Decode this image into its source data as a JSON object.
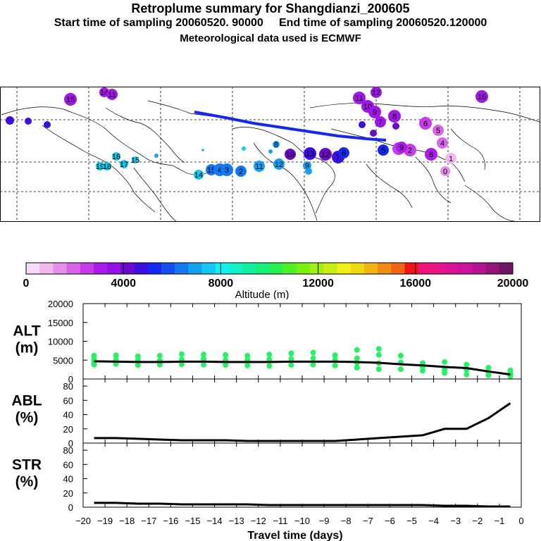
{
  "header": {
    "title": "Retroplume summary for Shangdianzi_200605",
    "sampling": "Start time of sampling 20060520. 90000     End time of sampling 20060520.120000",
    "met": "Meteorological data used is ECMWF"
  },
  "colorbar": {
    "label": "Altitude (m)",
    "ticks": [
      "0",
      "4000",
      "8000",
      "12000",
      "16000",
      "20000"
    ],
    "colors": [
      "#f7d8f7",
      "#efb8ef",
      "#e490ea",
      "#d865e6",
      "#c63ce6",
      "#aa1ce8",
      "#9414e8",
      "#6c0acc",
      "#3c0ee0",
      "#1428f0",
      "#1450f0",
      "#1478f0",
      "#14a0f0",
      "#14c8f0",
      "#14f0f0",
      "#14f0c8",
      "#14f0a0",
      "#14f078",
      "#28f050",
      "#50f028",
      "#78f014",
      "#a0f014",
      "#c8f014",
      "#f0f014",
      "#f0d814",
      "#f0b414",
      "#f08c14",
      "#f06414",
      "#f01414",
      "#f0147a",
      "#e8148c",
      "#d81494",
      "#c8149c",
      "#b41494",
      "#941478",
      "#701466"
    ]
  },
  "map_labels": {
    "plume": [
      {
        "t": "15",
        "c": "#a016e8"
      },
      {
        "t": "14",
        "c": "#a016e8"
      },
      {
        "t": "11",
        "c": "#a016e8"
      },
      {
        "t": "16",
        "c": "#a016e8"
      },
      {
        "t": "12",
        "c": "#a016e8"
      },
      {
        "t": "11",
        "c": "#a016e8"
      },
      {
        "t": "10",
        "c": "#a016e8"
      },
      {
        "t": "9",
        "c": "#a016e8"
      },
      {
        "t": "8",
        "c": "#a016e8"
      },
      {
        "t": "7",
        "c": "#a016e8"
      },
      {
        "t": "6",
        "c": "#c63ce6"
      },
      {
        "t": "5",
        "c": "#d865e6"
      },
      {
        "t": "4",
        "c": "#d865e6"
      },
      {
        "t": "3",
        "c": "#c63ce6"
      },
      {
        "t": "2",
        "c": "#c63ce6"
      },
      {
        "t": "1",
        "c": "#efb8ef"
      },
      {
        "t": "0",
        "c": "#e490ea"
      },
      {
        "t": "16",
        "c": "#14c8f0"
      },
      {
        "t": "17",
        "c": "#14c8f0"
      },
      {
        "t": "19",
        "c": "#14c8f0"
      },
      {
        "t": "18",
        "c": "#14c8f0"
      },
      {
        "t": "15",
        "c": "#14c8f0"
      },
      {
        "t": "14",
        "c": "#14c8f0"
      },
      {
        "t": "15",
        "c": "#1478f0"
      },
      {
        "t": "4",
        "c": "#1478f0"
      },
      {
        "t": "3",
        "c": "#1478f0"
      },
      {
        "t": "2",
        "c": "#1478f0"
      },
      {
        "t": "11",
        "c": "#14a0f0"
      },
      {
        "t": "12",
        "c": "#14a0f0"
      },
      {
        "t": "9",
        "c": "#14a0f0"
      },
      {
        "t": "8",
        "c": "#14a0f0"
      },
      {
        "t": "13",
        "c": "#3c0ee0"
      },
      {
        "t": "12",
        "c": "#6c0acc"
      },
      {
        "t": "10",
        "c": "#6c0acc"
      },
      {
        "t": "7",
        "c": "#3c0ee0"
      },
      {
        "t": "6",
        "c": "#1428f0"
      },
      {
        "t": "5",
        "c": "#1428f0"
      },
      {
        "t": "9",
        "c": "#aa1ce8"
      },
      {
        "t": "8",
        "c": "#aa1ce8"
      },
      {
        "t": "6",
        "c": "#aa1ce8"
      }
    ]
  },
  "chart_data": [
    {
      "type": "scatter",
      "panel": "ALT",
      "title": "Retroplume summary for Shangdianzi_200605",
      "ylabel": "ALT\n(m)",
      "ylabel_lines": [
        "ALT",
        "(m)"
      ],
      "ylim": [
        0,
        20000
      ],
      "yticks": [
        "0",
        "5000",
        "10000",
        "15000",
        "20000"
      ],
      "x": [
        -19.5,
        -18.5,
        -17.5,
        -16.5,
        -15.5,
        -14.5,
        -13.5,
        -12.5,
        -11.5,
        -10.5,
        -9.5,
        -8.5,
        -7.5,
        -6.5,
        -5.5,
        -4.5,
        -3.5,
        -2.5,
        -1.5,
        -0.5
      ],
      "series": [
        {
          "name": "mean altitude",
          "values": [
            4700,
            4600,
            4500,
            4500,
            4600,
            4600,
            4500,
            4500,
            4500,
            4600,
            4600,
            4600,
            4500,
            4300,
            3900,
            3600,
            3200,
            2900,
            2000,
            1200
          ]
        },
        {
          "name": "plume points",
          "points": [
            [
              -19.5,
              6200
            ],
            [
              -19.5,
              5200
            ],
            [
              -19.5,
              4400
            ],
            [
              -19.5,
              3800
            ],
            [
              -18.5,
              6300
            ],
            [
              -18.5,
              5100
            ],
            [
              -18.5,
              4000
            ],
            [
              -17.5,
              6000
            ],
            [
              -17.5,
              5000
            ],
            [
              -17.5,
              3700
            ],
            [
              -16.5,
              6200
            ],
            [
              -16.5,
              4900
            ],
            [
              -16.5,
              3800
            ],
            [
              -15.5,
              6600
            ],
            [
              -15.5,
              5200
            ],
            [
              -15.5,
              3900
            ],
            [
              -14.5,
              6500
            ],
            [
              -14.5,
              5300
            ],
            [
              -14.5,
              3800
            ],
            [
              -13.5,
              6400
            ],
            [
              -13.5,
              5000
            ],
            [
              -13.5,
              3700
            ],
            [
              -12.5,
              6200
            ],
            [
              -12.5,
              5100
            ],
            [
              -12.5,
              3600
            ],
            [
              -11.5,
              6500
            ],
            [
              -11.5,
              5200
            ],
            [
              -11.5,
              3500
            ],
            [
              -10.5,
              6800
            ],
            [
              -10.5,
              5300
            ],
            [
              -10.5,
              3700
            ],
            [
              -9.5,
              7000
            ],
            [
              -9.5,
              5500
            ],
            [
              -9.5,
              3800
            ],
            [
              -8.5,
              6300
            ],
            [
              -8.5,
              5000
            ],
            [
              -8.5,
              3600
            ],
            [
              -7.5,
              7700
            ],
            [
              -7.5,
              5500
            ],
            [
              -7.5,
              4300
            ],
            [
              -7.5,
              3000
            ],
            [
              -6.5,
              8000
            ],
            [
              -6.5,
              6400
            ],
            [
              -6.5,
              4200
            ],
            [
              -6.5,
              2600
            ],
            [
              -5.5,
              6200
            ],
            [
              -5.5,
              4400
            ],
            [
              -5.5,
              2600
            ],
            [
              -4.5,
              4200
            ],
            [
              -4.5,
              3200
            ],
            [
              -4.5,
              2200
            ],
            [
              -3.5,
              4500
            ],
            [
              -3.5,
              2500
            ],
            [
              -3.5,
              1600
            ],
            [
              -2.5,
              3800
            ],
            [
              -2.5,
              2500
            ],
            [
              -2.5,
              1200
            ],
            [
              -1.5,
              3000
            ],
            [
              -1.5,
              1800
            ],
            [
              -1.5,
              1000
            ],
            [
              -0.5,
              2300
            ],
            [
              -0.5,
              1400
            ],
            [
              -0.5,
              700
            ]
          ]
        }
      ]
    },
    {
      "type": "line",
      "panel": "ABL",
      "ylabel": "ABL\n(%)",
      "ylabel_lines": [
        "ABL",
        "(%)"
      ],
      "ylim": [
        0,
        90
      ],
      "yticks": [
        "0",
        "20",
        "40",
        "60",
        "80"
      ],
      "x": [
        -19.5,
        -18.5,
        -17.5,
        -16.5,
        -15.5,
        -14.5,
        -13.5,
        -12.5,
        -11.5,
        -10.5,
        -9.5,
        -8.5,
        -7.5,
        -6.5,
        -5.5,
        -4.5,
        -3.5,
        -2.5,
        -1.5,
        -0.5
      ],
      "series": [
        {
          "name": "ABL fraction",
          "values": [
            7,
            7,
            6,
            5,
            4,
            4,
            4,
            3,
            3,
            3,
            3,
            3,
            5,
            7,
            9,
            11,
            20,
            20,
            35,
            56
          ]
        }
      ]
    },
    {
      "type": "line",
      "panel": "STR",
      "xlabel": "Travel time (days)",
      "ylabel": "STR\n(%)",
      "ylabel_lines": [
        "STR",
        "(%)"
      ],
      "ylim": [
        0,
        90
      ],
      "yticks": [
        "0",
        "20",
        "40",
        "60",
        "80"
      ],
      "xlim": [
        -20,
        0
      ],
      "xticks": [
        "−20",
        "−19",
        "−18",
        "−17",
        "−16",
        "−15",
        "−14",
        "−13",
        "−12",
        "−11",
        "−10",
        "−9",
        "−8",
        "−7",
        "−6",
        "−5",
        "−4",
        "−3",
        "−2",
        "−1",
        "0"
      ],
      "x": [
        -19.5,
        -18.5,
        -17.5,
        -16.5,
        -15.5,
        -14.5,
        -13.5,
        -12.5,
        -11.5,
        -10.5,
        -9.5,
        -8.5,
        -7.5,
        -6.5,
        -5.5,
        -4.5,
        -3.5,
        -2.5,
        -1.5,
        -0.5
      ],
      "series": [
        {
          "name": "stratospheric fraction",
          "values": [
            6,
            6,
            5,
            5,
            4,
            4,
            4,
            4,
            3,
            3,
            3,
            3,
            3,
            3,
            3,
            3,
            2,
            2,
            1,
            1
          ]
        }
      ]
    }
  ]
}
